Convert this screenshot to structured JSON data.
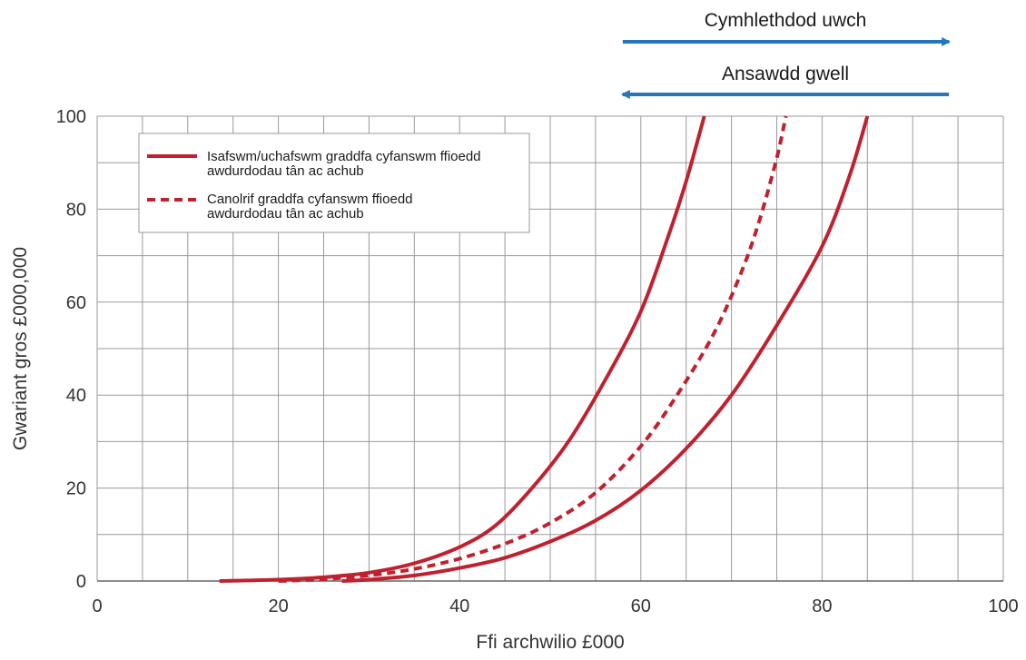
{
  "colors": {
    "series": "#c0212f",
    "arrow": "#2476bd",
    "grid": "#9a9a9a",
    "text": "#333333"
  },
  "chart_data": {
    "type": "line",
    "xlabel": "Ffi archwilio £000",
    "ylabel": "Gwariant gros £000,000",
    "xlim": [
      0,
      100
    ],
    "ylim": [
      0,
      100
    ],
    "xticks": [
      0,
      20,
      40,
      60,
      80,
      100
    ],
    "yticks": [
      0,
      20,
      40,
      60,
      80,
      100
    ],
    "grid": true,
    "legend_position": "top-left",
    "legend": [
      {
        "line1": "Isafswm/uchafswm graddfa cyfanswm ffioedd",
        "line2": "awdurdodau tân ac achub",
        "style": "solid"
      },
      {
        "line1": "Canolrif graddfa cyfanswm ffioedd",
        "line2": "awdurdodau tân ac achub",
        "style": "dashed"
      }
    ],
    "series": [
      {
        "style": "solid",
        "x": [
          13.5,
          20,
          25,
          30,
          35,
          40,
          44,
          48,
          52,
          56,
          60,
          63,
          65,
          67
        ],
        "y": [
          0,
          0.3,
          0.8,
          1.8,
          3.8,
          7.3,
          12,
          20,
          30,
          43,
          58,
          74,
          86,
          100
        ]
      },
      {
        "style": "dashed",
        "x": [
          20,
          25,
          30,
          35,
          40,
          45,
          50,
          55,
          60,
          64,
          68,
          71,
          73,
          75,
          76
        ],
        "y": [
          0,
          0.4,
          1.2,
          2.6,
          4.8,
          8,
          12.5,
          19,
          29,
          40,
          53,
          66,
          77,
          91,
          100
        ]
      },
      {
        "style": "solid",
        "x": [
          27,
          30,
          35,
          40,
          45,
          50,
          55,
          60,
          65,
          70,
          75,
          80,
          83,
          85
        ],
        "y": [
          0,
          0.3,
          1.2,
          2.8,
          5,
          8.5,
          13,
          19.5,
          28.5,
          40,
          55,
          72,
          87,
          100
        ]
      }
    ],
    "annotations": [
      {
        "text": "Cymhlethdod uwch",
        "direction": "right",
        "x_start": 58,
        "x_end": 94
      },
      {
        "text": "Ansawdd gwell",
        "direction": "left",
        "x_start": 58,
        "x_end": 94
      }
    ]
  }
}
